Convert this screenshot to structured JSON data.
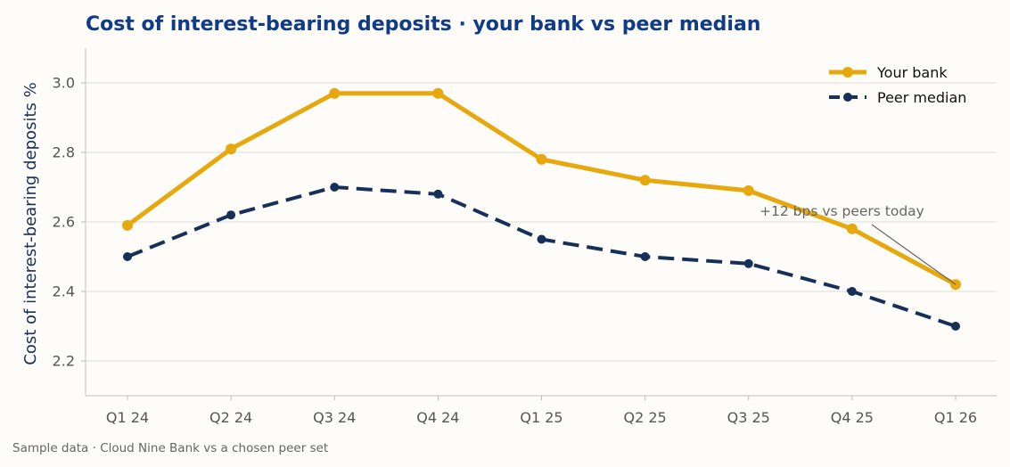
{
  "chart_data": {
    "type": "line",
    "title": "Cost of interest-bearing deposits  ·  your bank vs peer median",
    "xlabel": "",
    "ylabel": "Cost of interest-bearing deposits %",
    "categories": [
      "Q1 24",
      "Q2 24",
      "Q3 24",
      "Q4 24",
      "Q1 25",
      "Q2 25",
      "Q3 25",
      "Q4 25",
      "Q1 26"
    ],
    "series": [
      {
        "name": "Your bank",
        "values": [
          2.59,
          2.81,
          2.97,
          2.97,
          2.78,
          2.72,
          2.69,
          2.58,
          2.42
        ],
        "color": "#e6a80c",
        "style": "solid"
      },
      {
        "name": "Peer median",
        "values": [
          2.5,
          2.62,
          2.7,
          2.68,
          2.55,
          2.5,
          2.48,
          2.4,
          2.3
        ],
        "color": "#16305a",
        "style": "dashed"
      }
    ],
    "ylim": [
      2.1,
      3.1
    ],
    "yticks": [
      2.2,
      2.4,
      2.6,
      2.8,
      3.0
    ],
    "grid": "horizontal",
    "legend": "top-right",
    "annotation": {
      "text": "+12 bps vs peers today",
      "category": "Q1 26",
      "value": 2.42
    },
    "source": "Sample data · Cloud Nine Bank vs a chosen peer set"
  }
}
